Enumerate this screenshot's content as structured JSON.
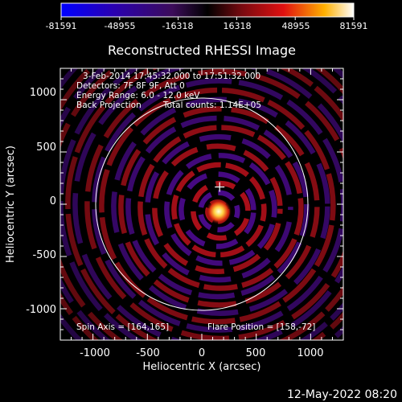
{
  "colorbar": {
    "tick_labels": [
      "-81591",
      "-48955",
      "-16318",
      "16318",
      "48955",
      "81591"
    ],
    "min": -81591,
    "max": 81591
  },
  "title": "Reconstructed RHESSI Image",
  "info": {
    "line1": "3-Feb-2014 17:45:32.000 to 17:51:32.000",
    "line2": "Detectors: 7F 8F 9F, Att 0",
    "line3": "Energy Range: 6.0 - 12.0 keV",
    "line4_left": "Back Projection",
    "line4_right": "Total counts: 1.14E+05"
  },
  "spin_axis": "Spin Axis = [164,165]",
  "flare_position": "Flare Position = [158,-72]",
  "axes": {
    "xlabel": "Heliocentric X (arcsec)",
    "ylabel": "Heliocentric Y (arcsec)",
    "x_ticks": [
      "-1000",
      "-500",
      "0",
      "500",
      "1000"
    ],
    "y_ticks": [
      "-1000",
      "-500",
      "0",
      "500",
      "1000"
    ],
    "xlim": [
      -1300,
      1300
    ],
    "ylim": [
      -1300,
      1300
    ]
  },
  "solar_limb_radius_arcsec": 975,
  "spin_axis_xy": [
    164,
    165
  ],
  "flare_xy": [
    158,
    -72
  ],
  "timestamp": "12-May-2022 08:20",
  "colors": {
    "background": "#000000",
    "foreground": "#ffffff",
    "negative": "#4a0a8c",
    "positive": "#b2101a",
    "peak": "#fff4c0"
  }
}
